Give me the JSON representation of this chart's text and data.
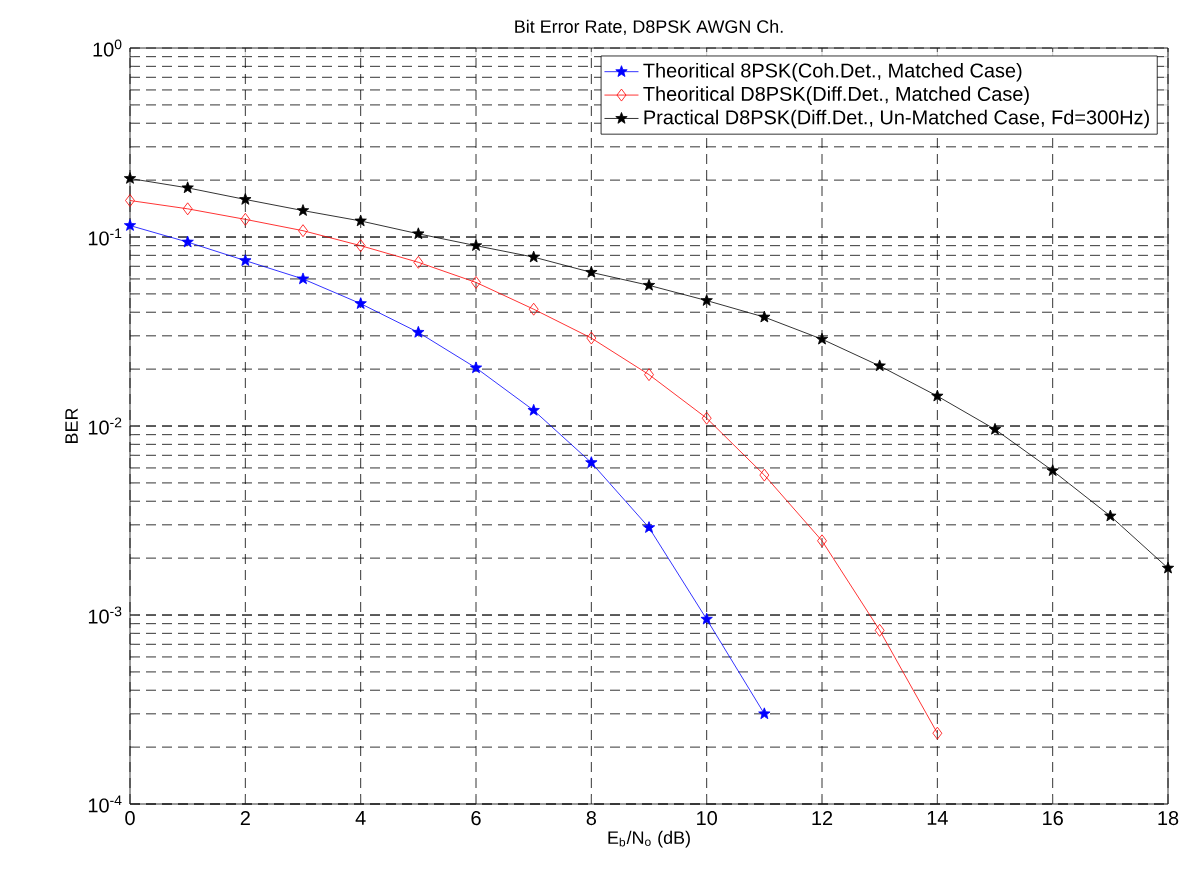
{
  "chart_data": {
    "type": "line",
    "title": "Bit Error Rate, D8PSK AWGN Ch.",
    "xlabel": "E$_{b}$/N$_{o}$ (dB)",
    "ylabel": "BER",
    "x": [
      0,
      1,
      2,
      3,
      4,
      5,
      6,
      7,
      8,
      9,
      10,
      11,
      12,
      13,
      14,
      15,
      16,
      17,
      18
    ],
    "series": [
      {
        "name": "Theoritical 8PSK(Coh.Det., Matched Case)",
        "color": "#0000ff",
        "marker": "star",
        "values": [
          0.115,
          0.094,
          0.075,
          0.06,
          0.0444,
          0.0313,
          0.0203,
          0.0121,
          0.0064,
          0.0029,
          0.00095,
          0.0003,
          null,
          null,
          null,
          null,
          null,
          null,
          null
        ]
      },
      {
        "name": "Theoritical D8PSK(Diff.Det., Matched Case)",
        "color": "#ff0000",
        "marker": "diamond",
        "values": [
          0.156,
          0.141,
          0.124,
          0.108,
          0.09,
          0.0735,
          0.0575,
          0.0415,
          0.0292,
          0.0187,
          0.011,
          0.0055,
          0.00247,
          0.00083,
          0.000237,
          null,
          null,
          null,
          null
        ]
      },
      {
        "name": "Practical D8PSK(Diff.Det., Un-Matched Case, Fd=300Hz)",
        "color": "#000000",
        "marker": "star",
        "values": [
          0.204,
          0.182,
          0.158,
          0.138,
          0.1216,
          0.104,
          0.09,
          0.0783,
          0.065,
          0.0555,
          0.0461,
          0.0377,
          0.0288,
          0.0208,
          0.0144,
          0.0096,
          0.0058,
          0.00334,
          0.00177
        ]
      }
    ],
    "xlim": [
      0,
      18
    ],
    "xticks": [
      0,
      2,
      4,
      6,
      8,
      10,
      12,
      14,
      16,
      18
    ],
    "ylim": [
      0.0001,
      1
    ],
    "yticks": [
      {
        "value": 0.0001,
        "label": "10$^{-4}$"
      },
      {
        "value": 0.001,
        "label": "10$^{-3}$"
      },
      {
        "value": 0.01,
        "label": "10$^{-2}$"
      },
      {
        "value": 0.1,
        "label": "10$^{-1}$"
      },
      {
        "value": 1,
        "label": "10$^{0}$"
      }
    ],
    "log": true,
    "grid": true,
    "legend": "top right",
    "line_style": "solid"
  }
}
